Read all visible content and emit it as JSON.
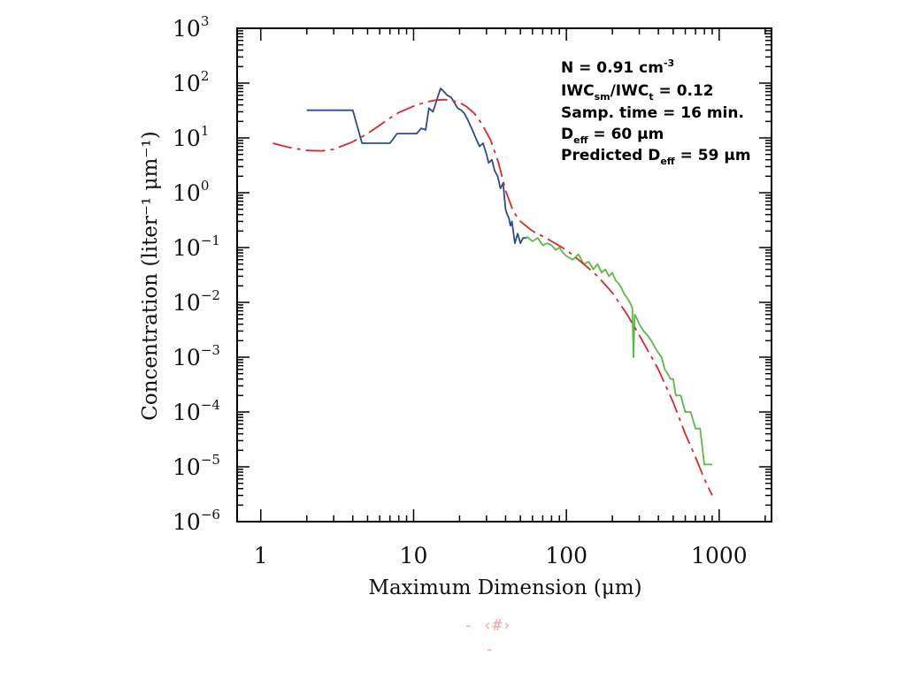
{
  "chart_data": {
    "type": "line",
    "title": "",
    "xlabel": "Maximum Dimension (μm)",
    "ylabel": "Concentration (liter⁻¹ μm⁻¹)",
    "xscale": "log",
    "yscale": "log",
    "xlim": [
      0.7,
      2200
    ],
    "ylim": [
      1e-06,
      1000
    ],
    "grid": false,
    "x_tick_labels": [
      "1",
      "10",
      "100",
      "1000"
    ],
    "y_tick_labels": [
      {
        "base": "10",
        "exp": "3"
      },
      {
        "base": "10",
        "exp": "2"
      },
      {
        "base": "10",
        "exp": "1"
      },
      {
        "base": "10",
        "exp": "0"
      },
      {
        "base": "10",
        "exp": "−1"
      },
      {
        "base": "10",
        "exp": "−2"
      },
      {
        "base": "10",
        "exp": "−3"
      },
      {
        "base": "10",
        "exp": "−4"
      },
      {
        "base": "10",
        "exp": "−5"
      },
      {
        "base": "10",
        "exp": "−6"
      }
    ],
    "series": [
      {
        "color": "#2e4b91",
        "style": "solid",
        "x": [
          2,
          4,
          4.6,
          5.2,
          6,
          7,
          7.8,
          9,
          10.5,
          11.2,
          12,
          12.6,
          13.4,
          14.2,
          15,
          15.8,
          16.6,
          17.6,
          18.4,
          19.4,
          20.5,
          21.5,
          22.5,
          24,
          25.5,
          27,
          28.5,
          30,
          31,
          32.5,
          34,
          35.5,
          37,
          38.5,
          40,
          41,
          42,
          43,
          44,
          46,
          48,
          50,
          52,
          55
        ],
        "y": [
          32,
          32,
          8,
          8,
          8,
          8,
          12,
          12,
          12,
          15,
          14,
          35,
          30,
          50,
          80,
          70,
          60,
          55,
          45,
          35,
          32,
          28,
          22,
          15,
          10,
          7,
          8,
          5,
          3.5,
          4,
          2.5,
          2,
          1.2,
          1.5,
          0.5,
          0.4,
          0.35,
          0.25,
          0.3,
          0.12,
          0.18,
          0.12,
          0.15,
          0.15
        ]
      },
      {
        "color": "#5cb84a",
        "style": "solid",
        "x": [
          55,
          60,
          65,
          70,
          75,
          80,
          85,
          90,
          95,
          100,
          110,
          120,
          130,
          140,
          150,
          160,
          170,
          180,
          190,
          200,
          210,
          220,
          230,
          240,
          250,
          260,
          270,
          275,
          280,
          290,
          300,
          320,
          340,
          360,
          380,
          400,
          420,
          440,
          460,
          480,
          500,
          520,
          560,
          600,
          650,
          700,
          750,
          800,
          900
        ],
        "y": [
          0.16,
          0.13,
          0.15,
          0.11,
          0.12,
          0.11,
          0.09,
          0.1,
          0.08,
          0.07,
          0.06,
          0.075,
          0.05,
          0.055,
          0.04,
          0.05,
          0.035,
          0.04,
          0.03,
          0.035,
          0.025,
          0.022,
          0.018,
          0.014,
          0.012,
          0.01,
          0.008,
          0.001,
          0.006,
          0.005,
          0.004,
          0.003,
          0.0025,
          0.002,
          0.0015,
          0.0012,
          0.001,
          0.0006,
          0.0005,
          0.0004,
          0.0004,
          0.0002,
          0.0002,
          0.0001,
          0.0001,
          5e-05,
          5e-05,
          1.1e-05,
          1.1e-05
        ]
      },
      {
        "color": "#d62a2a",
        "style": "dashed",
        "x": [
          1.2,
          1.5,
          2,
          2.5,
          3,
          4,
          5,
          6,
          7,
          8,
          10,
          12,
          14,
          16,
          18,
          20,
          22,
          25,
          28,
          32,
          36,
          40,
          45,
          50,
          60,
          70,
          80,
          100,
          130,
          160,
          200,
          250,
          300,
          400,
          500,
          600,
          700,
          800,
          900
        ],
        "y": [
          8,
          6.8,
          5.9,
          5.8,
          6.2,
          8.5,
          12,
          17,
          23,
          29,
          38,
          45,
          49,
          50,
          48,
          44,
          38,
          28,
          18,
          9,
          3.5,
          1.1,
          0.45,
          0.3,
          0.2,
          0.16,
          0.13,
          0.09,
          0.05,
          0.03,
          0.015,
          0.006,
          0.0025,
          0.0006,
          0.00015,
          4e-05,
          1.5e-05,
          6e-06,
          3e-06
        ]
      }
    ]
  },
  "annotations": {
    "line1": {
      "main": "N = 0.91 cm",
      "sup": "-3"
    },
    "line2": {
      "a": "IWC",
      "a_sub": "sm",
      "b": "/IWC",
      "b_sub": "t",
      "c": " = 0.12"
    },
    "line3": {
      "main": "Samp. time = 16 min."
    },
    "line4": {
      "a": "D",
      "a_sub": "eff",
      "c": " = 60 μm"
    },
    "line5": {
      "a": "Predicted D",
      "a_sub": "eff",
      "c": " = 59 μm"
    }
  },
  "footer": {
    "line1": "- ‹#›",
    "line2": "-"
  }
}
